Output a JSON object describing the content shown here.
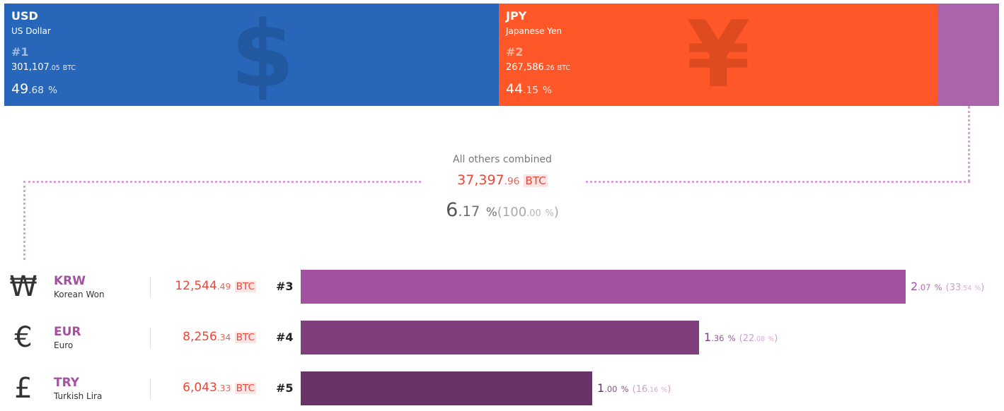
{
  "chart_data": {
    "type": "bar",
    "unit": "BTC",
    "top": [
      {
        "code": "USD",
        "name": "US Dollar",
        "rank": "#1",
        "btc_int": "301,107",
        "btc_dec": ".05",
        "btc_unit": "BTC",
        "pct_int": "49",
        "pct_dec": ".68",
        "pct_unit": "%",
        "symbol": "$",
        "color": "#2766b8",
        "value": 301107.05,
        "percent": 49.68
      },
      {
        "code": "JPY",
        "name": "Japanese Yen",
        "rank": "#2",
        "btc_int": "267,586",
        "btc_dec": ".26",
        "btc_unit": "BTC",
        "pct_int": "44",
        "pct_dec": ".15",
        "pct_unit": "%",
        "symbol": "¥",
        "color": "#ff5727",
        "value": 267586.26,
        "percent": 44.15
      },
      {
        "color": "#ab63ac",
        "percent": 6.17
      }
    ],
    "others": {
      "title": "All others combined",
      "btc_int": "37,397",
      "btc_dec": ".96",
      "btc_unit": "BTC",
      "pct_int": "6",
      "pct_dec": ".17",
      "pct_unit": "%",
      "rel_open": "(",
      "rel_int": "100",
      "rel_dec": ".00",
      "rel_unit": "%",
      "rel_close": ")",
      "value": 37397.96,
      "percent": 6.17,
      "relative_percent": 100.0
    },
    "rows": [
      {
        "symbol": "₩",
        "code": "KRW",
        "name": "Korean Won",
        "btc_int": "12,544",
        "btc_dec": ".49",
        "btc_unit": "BTC",
        "rank": "#3",
        "pct_int": "2",
        "pct_dec": ".07",
        "pct_unit": "%",
        "rel_open": "(",
        "rel_int": "33",
        "rel_dec": ".54",
        "rel_unit": "%",
        "rel_close": ")",
        "value": 12544.49,
        "percent": 2.07,
        "relative_percent": 33.54,
        "color": "#a352a0"
      },
      {
        "symbol": "€",
        "code": "EUR",
        "name": "Euro",
        "btc_int": "8,256",
        "btc_dec": ".34",
        "btc_unit": "BTC",
        "rank": "#4",
        "pct_int": "1",
        "pct_dec": ".36",
        "pct_unit": "%",
        "rel_open": "(",
        "rel_int": "22",
        "rel_dec": ".08",
        "rel_unit": "%",
        "rel_close": ")",
        "value": 8256.34,
        "percent": 1.36,
        "relative_percent": 22.08,
        "color": "#7e3f7c"
      },
      {
        "symbol": "£",
        "code": "TRY",
        "name": "Turkish Lira",
        "btc_int": "6,043",
        "btc_dec": ".33",
        "btc_unit": "BTC",
        "rank": "#5",
        "pct_int": "1",
        "pct_dec": ".00",
        "pct_unit": "%",
        "rel_open": "(",
        "rel_int": "16",
        "rel_dec": ".16",
        "rel_unit": "%",
        "rel_close": ")",
        "value": 6043.33,
        "percent": 1.0,
        "relative_percent": 16.16,
        "color": "#6a3368"
      }
    ]
  }
}
